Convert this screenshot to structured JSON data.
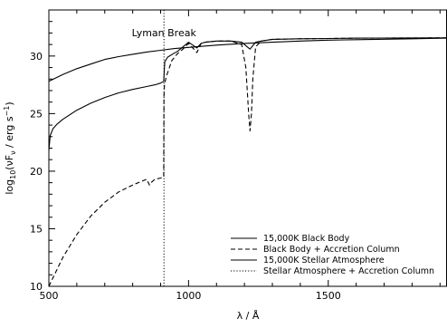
{
  "chart_data": {
    "type": "line",
    "xlabel": "λ / Å",
    "ylabel": "log10(νFν / erg s⁻¹)",
    "ylabel_parts": {
      "pre": "log",
      "sub": "10",
      "mid": "(νF",
      "sub2": "ν",
      "post": " / erg s",
      "sup": "−1",
      "end": ")"
    },
    "xlim": [
      500,
      1925
    ],
    "ylim": [
      10,
      34
    ],
    "xticks": [
      500,
      1000,
      1500
    ],
    "yticks": [
      10,
      15,
      20,
      25,
      30
    ],
    "annotation": {
      "text": "Lyman Break",
      "x": 912,
      "y": 31.7
    },
    "vline_x": 912,
    "legend_position": "bottom-right",
    "series": [
      {
        "name": "15,000K Black Body",
        "style": "solid",
        "x": [
          500,
          550,
          600,
          650,
          700,
          750,
          800,
          850,
          900,
          950,
          1000,
          1100,
          1200,
          1300,
          1400,
          1500,
          1600,
          1700,
          1800,
          1925
        ],
        "y": [
          27.8,
          28.4,
          28.9,
          29.3,
          29.7,
          29.95,
          30.15,
          30.35,
          30.5,
          30.65,
          30.75,
          30.95,
          31.1,
          31.2,
          31.3,
          31.38,
          31.42,
          31.46,
          31.5,
          31.55
        ]
      },
      {
        "name": "Black Body + Accretion Column",
        "style": "dashed",
        "x": [
          500,
          550,
          600,
          650,
          700,
          750,
          800,
          850,
          860,
          870,
          880,
          900,
          911,
          912,
          914,
          920,
          940,
          960,
          980,
          1000,
          1030,
          1045,
          1060,
          1100,
          1150,
          1190,
          1205,
          1215,
          1220,
          1225,
          1230,
          1240,
          1260,
          1300,
          1400,
          1500,
          1600,
          1700,
          1800,
          1925
        ],
        "y": [
          10,
          12.5,
          14.5,
          16.1,
          17.3,
          18.2,
          18.8,
          19.3,
          18.8,
          19.1,
          19.3,
          19.4,
          19.5,
          26.5,
          27.5,
          28.2,
          29.6,
          30.2,
          30.6,
          31.1,
          30.3,
          31.1,
          31.2,
          31.3,
          31.3,
          31.0,
          29.0,
          25.0,
          23.5,
          25.0,
          28.0,
          30.8,
          31.3,
          31.45,
          31.5,
          31.52,
          31.55,
          31.56,
          31.57,
          31.58
        ]
      },
      {
        "name": "15,000K Stellar Atmosphere",
        "style": "solid",
        "x": [
          500,
          505,
          515,
          530,
          550,
          600,
          650,
          700,
          750,
          800,
          850,
          880,
          900,
          911,
          912,
          915,
          925,
          945,
          960,
          980,
          1000,
          1030,
          1045,
          1060,
          1100,
          1150,
          1190,
          1200,
          1210,
          1220,
          1230,
          1240,
          1260,
          1300,
          1400,
          1500,
          1600,
          1700,
          1800,
          1925
        ],
        "y": [
          21.8,
          23.1,
          23.7,
          24.1,
          24.5,
          25.3,
          25.9,
          26.4,
          26.8,
          27.1,
          27.35,
          27.5,
          27.65,
          27.8,
          28.2,
          29.5,
          29.9,
          30.2,
          30.4,
          30.8,
          31.2,
          30.7,
          31.1,
          31.2,
          31.3,
          31.3,
          31.2,
          31.0,
          30.8,
          30.6,
          30.9,
          31.2,
          31.3,
          31.45,
          31.5,
          31.52,
          31.55,
          31.56,
          31.57,
          31.58
        ]
      },
      {
        "name": "Stellar Atmosphere + Accretion Column",
        "style": "dotted"
      }
    ]
  }
}
